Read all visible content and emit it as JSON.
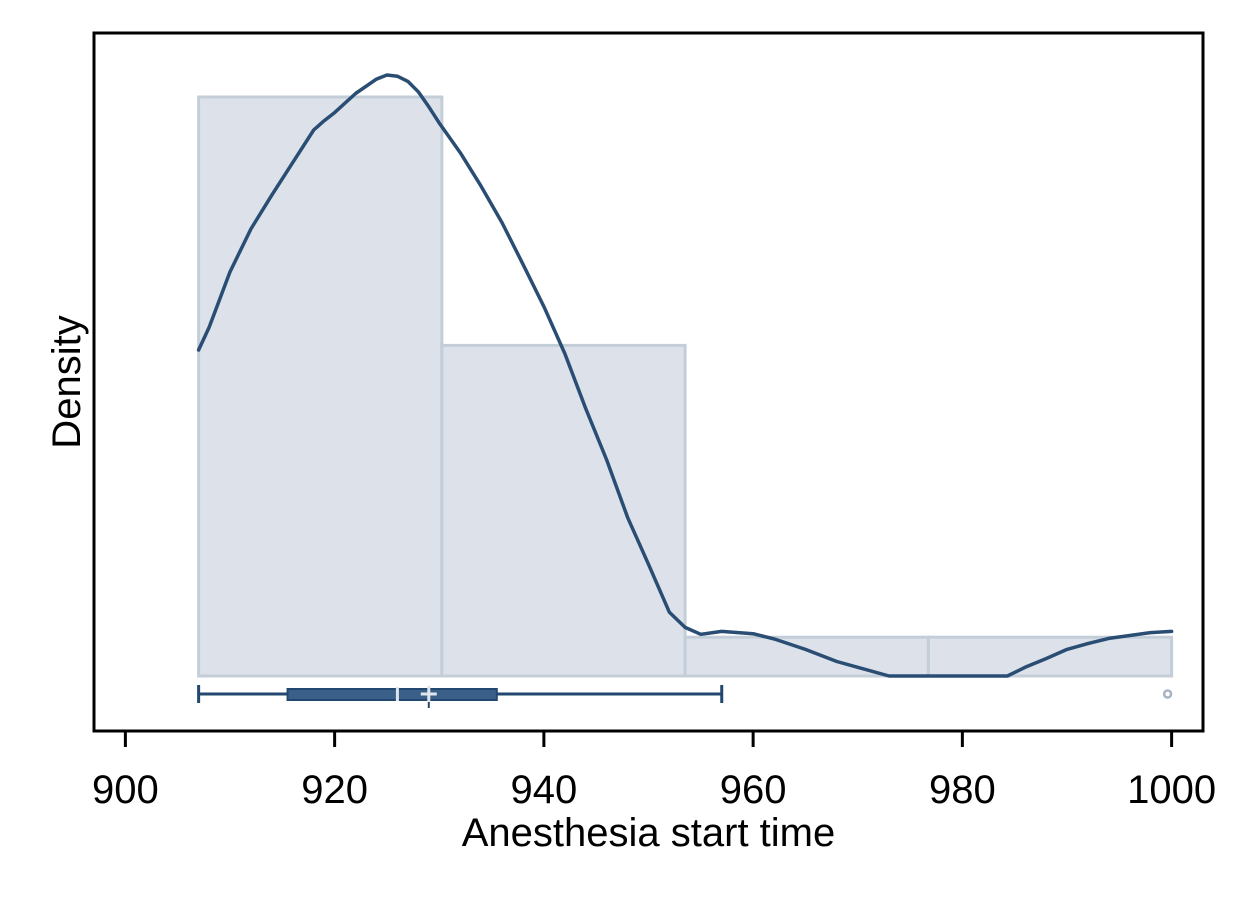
{
  "chart_data": {
    "type": "bar",
    "subtype": "histogram with kernel density and box plot",
    "title": "",
    "xlabel": "Anesthesia start time",
    "ylabel": "Density",
    "xlim": [
      897,
      1003
    ],
    "ylim": [
      0,
      1
    ],
    "y_ticks_shown": false,
    "x_ticks": [
      900,
      920,
      940,
      960,
      980,
      1000
    ],
    "grid": false,
    "legend": "none",
    "histogram": {
      "bin_edges": [
        907,
        930.25,
        953.5,
        976.75,
        1000
      ],
      "relative_heights": [
        1.0,
        0.571,
        0.067,
        0.067
      ]
    },
    "density_curve": {
      "x": [
        907,
        908,
        910,
        912,
        914,
        916,
        918,
        919,
        920,
        922,
        924,
        925,
        926,
        927,
        928,
        929,
        930,
        932,
        934,
        936,
        938,
        940,
        942,
        944,
        946,
        948,
        950,
        952,
        953.5,
        955,
        957,
        960,
        962,
        965,
        968,
        970,
        973,
        976,
        978,
        980,
        982,
        984.3,
        986,
        988,
        990,
        992,
        994,
        996,
        998,
        1000
      ],
      "y": [
        0.563,
        0.602,
        0.698,
        0.772,
        0.831,
        0.887,
        0.943,
        0.959,
        0.973,
        1.006,
        1.031,
        1.038,
        1.036,
        1.027,
        1.009,
        0.983,
        0.955,
        0.904,
        0.846,
        0.783,
        0.711,
        0.638,
        0.557,
        0.462,
        0.373,
        0.274,
        0.193,
        0.11,
        0.084,
        0.072,
        0.077,
        0.073,
        0.064,
        0.046,
        0.025,
        0.015,
        0.0,
        0.0,
        0.0,
        0.0,
        0.0,
        0.0,
        0.015,
        0.03,
        0.046,
        0.056,
        0.065,
        0.07,
        0.075,
        0.077
      ]
    },
    "box_plot": {
      "whisker_low": 907,
      "q1": 915.5,
      "median": 926,
      "mean": 929,
      "q3": 935.5,
      "whisker_high": 957,
      "outliers": [
        1000
      ]
    }
  },
  "colors": {
    "hist_fill": "#dde2ea",
    "hist_stroke": "#c3ced8",
    "curve": "#2a4d74",
    "box_fill": "#3a5f88",
    "box_stroke": "#23486f",
    "mean_marker": "#e0e6ee",
    "outlier": "#a6b4c2",
    "frame": "#000000"
  }
}
